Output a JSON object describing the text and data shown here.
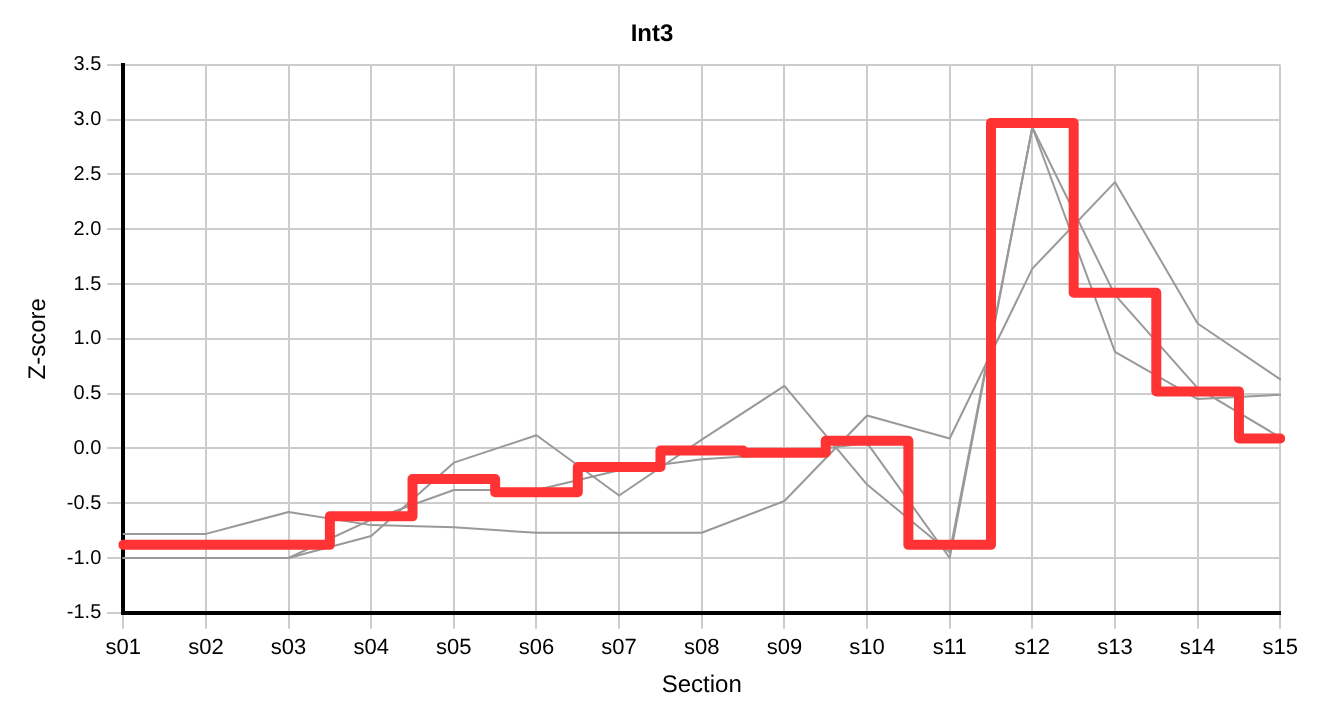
{
  "chart_data": {
    "type": "line",
    "title": "Int3",
    "xlabel": "Section",
    "ylabel": "Z-score",
    "categories": [
      "s01",
      "s02",
      "s03",
      "s04",
      "s05",
      "s06",
      "s07",
      "s08",
      "s09",
      "s10",
      "s11",
      "s12",
      "s13",
      "s14",
      "s15"
    ],
    "series": [
      {
        "type": "line",
        "color": "#999999",
        "values": [
          -0.78,
          -0.78,
          -0.58,
          -0.7,
          -0.72,
          -0.77,
          -0.77,
          -0.77,
          -0.48,
          0.3,
          0.09,
          1.64,
          2.43,
          1.14,
          0.63
        ]
      },
      {
        "type": "line",
        "color": "#999999",
        "values": [
          -1.0,
          -1.0,
          -1.0,
          -0.8,
          -0.13,
          0.12,
          -0.43,
          0.08,
          0.57,
          -0.33,
          -0.95,
          2.93,
          0.88,
          0.45,
          0.49
        ]
      },
      {
        "type": "line",
        "color": "#999999",
        "values": [
          -1.0,
          -1.0,
          -1.0,
          -0.65,
          -0.38,
          -0.38,
          -0.2,
          -0.1,
          -0.05,
          0.05,
          -1.0,
          2.93,
          1.4,
          0.55,
          0.1
        ]
      },
      {
        "type": "step",
        "color": "#ff3333",
        "values": [
          -0.88,
          -0.88,
          -0.88,
          -0.62,
          -0.28,
          -0.4,
          -0.17,
          -0.02,
          -0.04,
          0.07,
          -0.88,
          2.97,
          1.42,
          0.52,
          0.09
        ]
      }
    ],
    "ylim": [
      -1.5,
      3.5
    ],
    "yticks": [
      -1.5,
      {
        "value": -1,
        "label": "-1.0"
      },
      -0.5,
      {
        "value": 0,
        "label": "0.0"
      },
      0.5,
      {
        "value": 1,
        "label": "1.0"
      },
      1.5,
      {
        "value": 2,
        "label": "2.0"
      },
      2.5,
      {
        "value": 3,
        "label": "3.0"
      },
      3.5
    ],
    "grid": true,
    "legend": false,
    "marker": "none"
  }
}
